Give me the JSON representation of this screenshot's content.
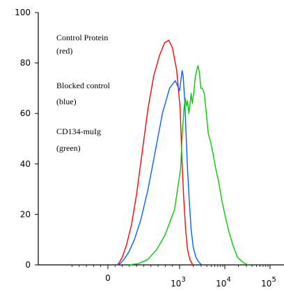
{
  "chart_data": {
    "type": "line",
    "title": "",
    "xlabel": "",
    "ylabel": "",
    "xscale": "logicle",
    "ylim": [
      0,
      100
    ],
    "yticks": [
      {
        "value": 0,
        "label": "0"
      },
      {
        "value": 20,
        "label": "20"
      },
      {
        "value": 40,
        "label": "40"
      },
      {
        "value": 60,
        "label": "60"
      },
      {
        "value": 80,
        "label": "80"
      },
      {
        "value": 100,
        "label": "100"
      }
    ],
    "xticks": [
      {
        "value": 0,
        "base": "0",
        "exp": ""
      },
      {
        "value": 1000,
        "base": "10",
        "exp": "3"
      },
      {
        "value": 10000,
        "base": "10",
        "exp": "4"
      },
      {
        "value": 100000,
        "base": "10",
        "exp": "5"
      }
    ],
    "legend": [
      {
        "line1": "Control Protein",
        "line2": "(red)"
      },
      {
        "line1": "Blocked control",
        "line2": "(blue)"
      },
      {
        "line1": "CD134-muIg",
        "line2": "(green)"
      }
    ],
    "series": [
      {
        "color": "#ff0000",
        "points": [
          [
            120,
            0
          ],
          [
            150,
            0.5
          ],
          [
            200,
            3
          ],
          [
            260,
            8
          ],
          [
            330,
            16
          ],
          [
            400,
            28
          ],
          [
            480,
            45
          ],
          [
            560,
            62
          ],
          [
            640,
            75
          ],
          [
            720,
            83
          ],
          [
            790,
            88
          ],
          [
            850,
            89
          ],
          [
            900,
            86
          ],
          [
            960,
            77
          ],
          [
            1030,
            62
          ],
          [
            1120,
            43
          ],
          [
            1230,
            27
          ],
          [
            1360,
            14
          ],
          [
            1500,
            6
          ],
          [
            1700,
            2
          ],
          [
            1950,
            0
          ]
        ]
      },
      {
        "color": "#0060ff",
        "points": [
          [
            130,
            0
          ],
          [
            170,
            0.5
          ],
          [
            220,
            2
          ],
          [
            290,
            5
          ],
          [
            370,
            10
          ],
          [
            460,
            18
          ],
          [
            560,
            30
          ],
          [
            660,
            45
          ],
          [
            760,
            60
          ],
          [
            860,
            70
          ],
          [
            940,
            73
          ],
          [
            1000,
            69
          ],
          [
            1080,
            74
          ],
          [
            1140,
            77
          ],
          [
            1200,
            75
          ],
          [
            1290,
            66
          ],
          [
            1390,
            52
          ],
          [
            1500,
            38
          ],
          [
            1640,
            25
          ],
          [
            1800,
            14
          ],
          [
            2000,
            7
          ],
          [
            2300,
            3
          ],
          [
            2700,
            1
          ],
          [
            3100,
            0
          ]
        ]
      },
      {
        "color": "#00cc00",
        "points": [
          [
            300,
            0
          ],
          [
            420,
            0.5
          ],
          [
            550,
            2
          ],
          [
            680,
            6
          ],
          [
            800,
            12
          ],
          [
            930,
            22
          ],
          [
            1050,
            38
          ],
          [
            1150,
            52
          ],
          [
            1250,
            62
          ],
          [
            1330,
            66
          ],
          [
            1420,
            63
          ],
          [
            1500,
            65
          ],
          [
            1600,
            60
          ],
          [
            1700,
            64
          ],
          [
            1800,
            68
          ],
          [
            1900,
            64
          ],
          [
            2050,
            68
          ],
          [
            2200,
            74
          ],
          [
            2380,
            77
          ],
          [
            2560,
            79
          ],
          [
            2750,
            76
          ],
          [
            2950,
            70
          ],
          [
            3200,
            70
          ],
          [
            3500,
            68
          ],
          [
            3850,
            61
          ],
          [
            4300,
            52
          ],
          [
            4800,
            49
          ],
          [
            5500,
            44
          ],
          [
            6300,
            38
          ],
          [
            7300,
            33
          ],
          [
            8500,
            26
          ],
          [
            10000,
            20
          ],
          [
            12000,
            14
          ],
          [
            15000,
            8
          ],
          [
            19000,
            3
          ],
          [
            25000,
            1
          ],
          [
            33000,
            0
          ]
        ]
      }
    ]
  }
}
